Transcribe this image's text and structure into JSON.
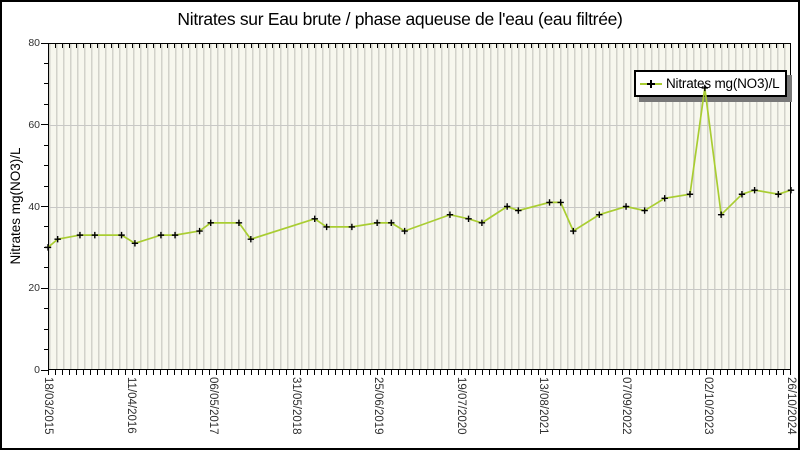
{
  "chart_data": {
    "type": "line",
    "title": "Nitrates sur Eau brute / phase aqueuse de l'eau (eau filtrée)",
    "ylabel": "Nitrates mg(NO3)/L",
    "ylim": [
      0,
      80
    ],
    "yticks": [
      0,
      20,
      40,
      60,
      80
    ],
    "y_minor_tick_step": 5,
    "x_tick_labels": [
      "18/03/2015",
      "11/04/2016",
      "06/05/2017",
      "31/05/2018",
      "25/06/2019",
      "19/07/2020",
      "13/08/2021",
      "07/09/2022",
      "02/10/2023",
      "26/10/2024"
    ],
    "grid": {
      "vertical_minor": true,
      "horizontal_at": [
        20,
        40,
        60
      ]
    },
    "legend": {
      "position": "top-right",
      "label": "Nitrates mg(NO3)/L",
      "marker": "plus-on-line"
    },
    "series": [
      {
        "name": "Nitrates mg(NO3)/L",
        "line_color": "#a9cd32",
        "marker": "plus",
        "marker_color": "#000000",
        "points": [
          {
            "x": 0.0,
            "v": 30
          },
          {
            "x": 0.013,
            "v": 32
          },
          {
            "x": 0.043,
            "v": 33
          },
          {
            "x": 0.063,
            "v": 33
          },
          {
            "x": 0.099,
            "v": 33
          },
          {
            "x": 0.117,
            "v": 31
          },
          {
            "x": 0.152,
            "v": 33
          },
          {
            "x": 0.171,
            "v": 33
          },
          {
            "x": 0.204,
            "v": 34
          },
          {
            "x": 0.219,
            "v": 36
          },
          {
            "x": 0.257,
            "v": 36
          },
          {
            "x": 0.273,
            "v": 32
          },
          {
            "x": 0.359,
            "v": 37
          },
          {
            "x": 0.375,
            "v": 35
          },
          {
            "x": 0.409,
            "v": 35
          },
          {
            "x": 0.443,
            "v": 36
          },
          {
            "x": 0.462,
            "v": 36
          },
          {
            "x": 0.48,
            "v": 34
          },
          {
            "x": 0.541,
            "v": 38
          },
          {
            "x": 0.566,
            "v": 37
          },
          {
            "x": 0.584,
            "v": 36
          },
          {
            "x": 0.618,
            "v": 40
          },
          {
            "x": 0.633,
            "v": 39
          },
          {
            "x": 0.675,
            "v": 41
          },
          {
            "x": 0.69,
            "v": 41
          },
          {
            "x": 0.707,
            "v": 34
          },
          {
            "x": 0.742,
            "v": 38
          },
          {
            "x": 0.778,
            "v": 40
          },
          {
            "x": 0.803,
            "v": 39
          },
          {
            "x": 0.83,
            "v": 42
          },
          {
            "x": 0.864,
            "v": 43
          },
          {
            "x": 0.884,
            "v": 69
          },
          {
            "x": 0.906,
            "v": 38
          },
          {
            "x": 0.934,
            "v": 43
          },
          {
            "x": 0.951,
            "v": 44
          },
          {
            "x": 0.983,
            "v": 43
          },
          {
            "x": 1.0,
            "v": 44
          }
        ]
      }
    ]
  },
  "colors": {
    "plot_bg": "#f7f7ee",
    "grid_vertical": "#d2d2ca",
    "grid_horizontal": "#c8c8c6",
    "frame": "#000000",
    "line": "#a9cd32",
    "marker": "#000000",
    "tick_label": "#303030",
    "legend_shadow": "#787878"
  }
}
